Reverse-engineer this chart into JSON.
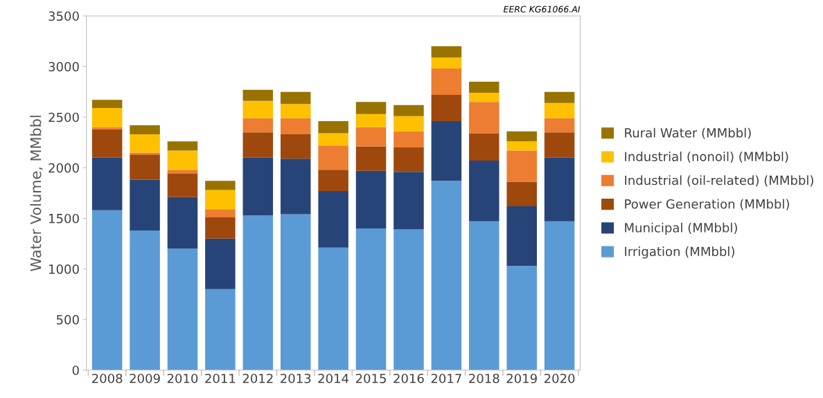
{
  "chart_data": {
    "type": "bar",
    "stacked": true,
    "ylabel": "Water Volume, MMbbl",
    "annotations": [
      "EERC KG61066.AI"
    ],
    "categories": [
      "2008",
      "2009",
      "2010",
      "2011",
      "2012",
      "2013",
      "2014",
      "2015",
      "2016",
      "2017",
      "2018",
      "2019",
      "2020"
    ],
    "series": [
      {
        "name": "Irrigation (MMbbl)",
        "color": "#5b9bd5",
        "values": [
          1580,
          1380,
          1200,
          800,
          1530,
          1540,
          1210,
          1400,
          1390,
          1870,
          1470,
          1030,
          1470
        ]
      },
      {
        "name": "Municipal (MMbbl)",
        "color": "#264478",
        "values": [
          520,
          500,
          510,
          500,
          570,
          550,
          560,
          570,
          570,
          590,
          600,
          590,
          630
        ]
      },
      {
        "name": "Power Generation (MMbbl)",
        "color": "#9e480e",
        "values": [
          280,
          250,
          230,
          210,
          250,
          240,
          210,
          240,
          240,
          260,
          270,
          240,
          250
        ]
      },
      {
        "name": "Industrial (oil-related) (MMbbl)",
        "color": "#ed7d31",
        "values": [
          20,
          20,
          40,
          80,
          140,
          160,
          240,
          190,
          160,
          260,
          310,
          310,
          140
        ]
      },
      {
        "name": "Industrial (nonoil) (MMbbl)",
        "color": "#ffc000",
        "values": [
          190,
          180,
          190,
          190,
          170,
          140,
          120,
          130,
          150,
          110,
          90,
          90,
          150
        ]
      },
      {
        "name": "Rural Water (MMbbl)",
        "color": "#997300",
        "values": [
          80,
          90,
          90,
          90,
          110,
          120,
          120,
          120,
          110,
          110,
          110,
          100,
          110
        ]
      }
    ],
    "ylim": [
      0,
      3500
    ],
    "yticks": [
      0,
      500,
      1000,
      1500,
      2000,
      2500,
      3000,
      3500
    ],
    "grid": false,
    "legend": "right"
  }
}
